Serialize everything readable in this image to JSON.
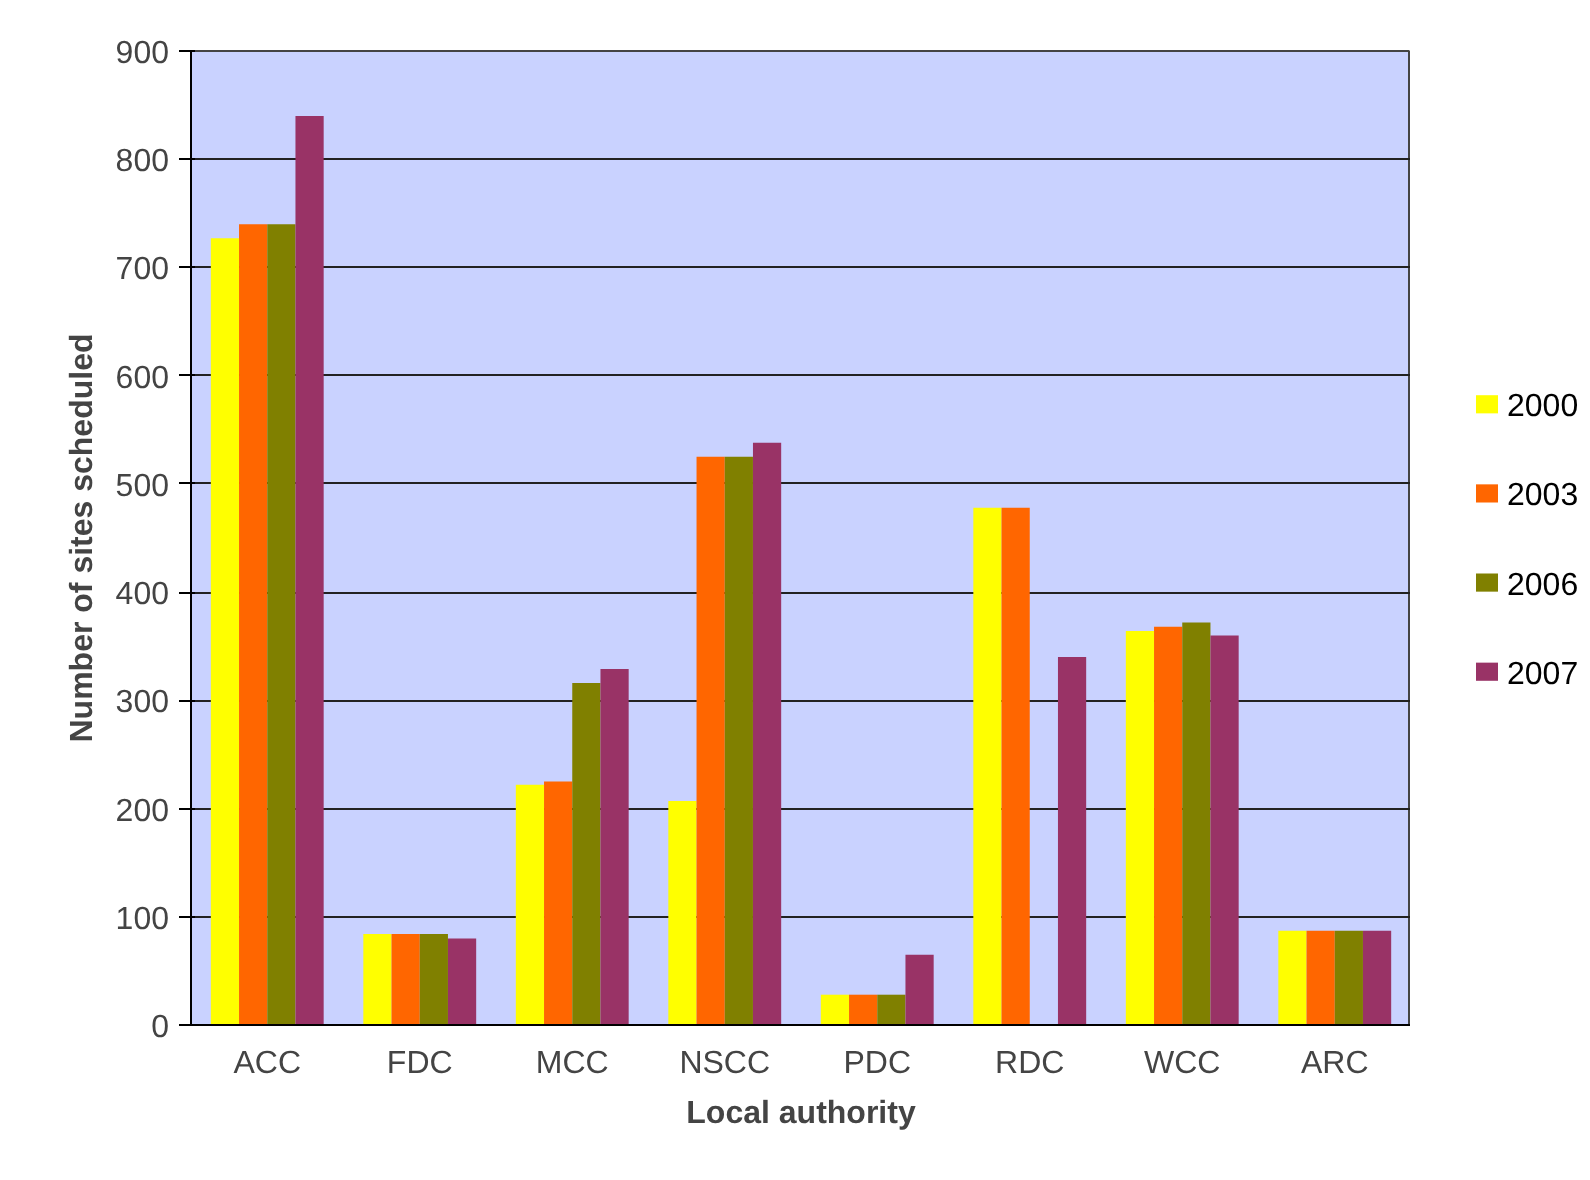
{
  "chart_data": {
    "type": "bar",
    "xlabel": "Local authority",
    "ylabel": "Number of sites scheduled",
    "categories": [
      "ACC",
      "FDC",
      "MCC",
      "NSCC",
      "PDC",
      "RDC",
      "WCC",
      "ARC"
    ],
    "series": [
      {
        "name": "2000",
        "color": "#ffff00",
        "values": [
          727,
          84,
          222,
          207,
          28,
          478,
          364,
          87
        ]
      },
      {
        "name": "2003",
        "color": "#ff6600",
        "values": [
          740,
          84,
          225,
          525,
          28,
          478,
          368,
          87
        ]
      },
      {
        "name": "2006",
        "color": "#808000",
        "values": [
          740,
          84,
          316,
          525,
          28,
          null,
          372,
          87
        ]
      },
      {
        "name": "2007",
        "color": "#993366",
        "values": [
          840,
          80,
          329,
          538,
          65,
          340,
          360,
          87
        ]
      }
    ],
    "ylim": [
      0,
      900
    ],
    "yticks": [
      0,
      100,
      200,
      300,
      400,
      500,
      600,
      700,
      800,
      900
    ],
    "grid": "y",
    "legend": "right"
  }
}
